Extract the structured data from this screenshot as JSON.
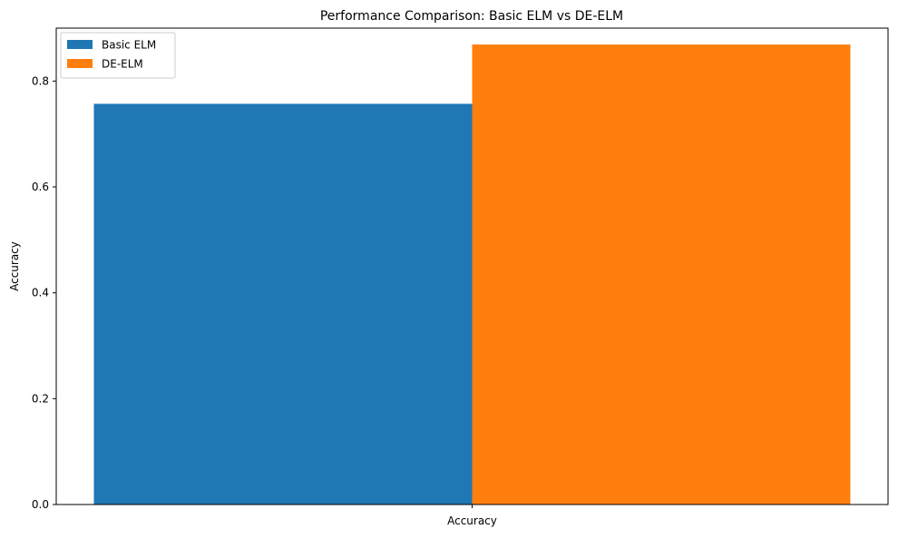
{
  "chart_data": {
    "type": "bar",
    "title": "Performance Comparison: Basic ELM vs DE-ELM",
    "xlabel": "",
    "ylabel": "Accuracy",
    "categories": [
      "Accuracy"
    ],
    "series": [
      {
        "name": "Basic ELM",
        "values": [
          0.757
        ],
        "color": "#1f77b4"
      },
      {
        "name": "DE-ELM",
        "values": [
          0.869
        ],
        "color": "#ff7f0e"
      }
    ],
    "ylim": [
      0,
      0.9
    ],
    "yticks": [
      0.0,
      0.2,
      0.4,
      0.6,
      0.8
    ],
    "ytick_labels": [
      "0.0",
      "0.2",
      "0.4",
      "0.6",
      "0.8"
    ],
    "grid": false,
    "legend_position": "top-left"
  }
}
